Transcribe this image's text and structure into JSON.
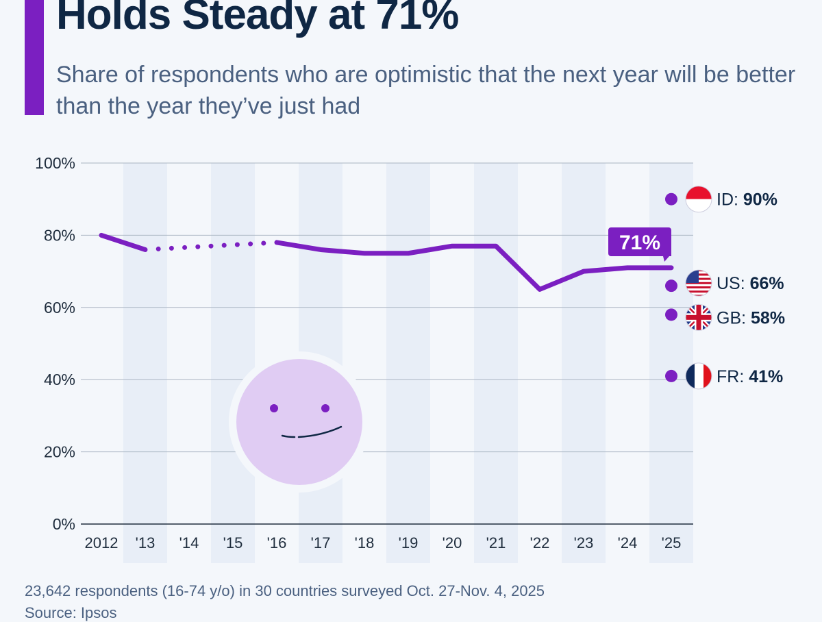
{
  "title": "Holds Steady at 71%",
  "subtitle": "Share of respondents who are optimistic that the next year will be better than the year they’ve just had",
  "note": "23,642 respondents (16-74 y/o) in 30 countries surveyed Oct. 27-Nov. 4, 2025",
  "source": "Source: Ipsos",
  "colors": {
    "accent": "#7b1fc1",
    "title": "#0f2744",
    "subtitle": "#4a6080",
    "band": "#e8eef7",
    "face": "#e0ccf3"
  },
  "chart_data": {
    "type": "line",
    "title": "Holds Steady at 71%",
    "x": [
      "2012",
      "'13",
      "'14",
      "'15",
      "'16",
      "'17",
      "'18",
      "'19",
      "'20",
      "'21",
      "'22",
      "'23",
      "'24",
      "'25"
    ],
    "series": [
      {
        "values": [
          80,
          76,
          null,
          null,
          78,
          76,
          75,
          75,
          77,
          77,
          65,
          70,
          71,
          71
        ]
      }
    ],
    "gap_style": "dotted",
    "ylim": [
      0,
      100
    ],
    "yticks": [
      "0%",
      "20%",
      "40%",
      "60%",
      "80%",
      "100%"
    ],
    "grid": true,
    "callout": "71%",
    "country_markers": [
      {
        "code": "ID",
        "value": 90,
        "label": "ID:",
        "value_label": "90%",
        "flag": "indonesia-flag"
      },
      {
        "code": "US",
        "value": 66,
        "label": "US:",
        "value_label": "66%",
        "flag": "usa-flag"
      },
      {
        "code": "GB",
        "value": 58,
        "label": "GB:",
        "value_label": "58%",
        "flag": "uk-flag"
      },
      {
        "code": "FR",
        "value": 41,
        "label": "FR:",
        "value_label": "41%",
        "flag": "france-flag"
      }
    ]
  }
}
